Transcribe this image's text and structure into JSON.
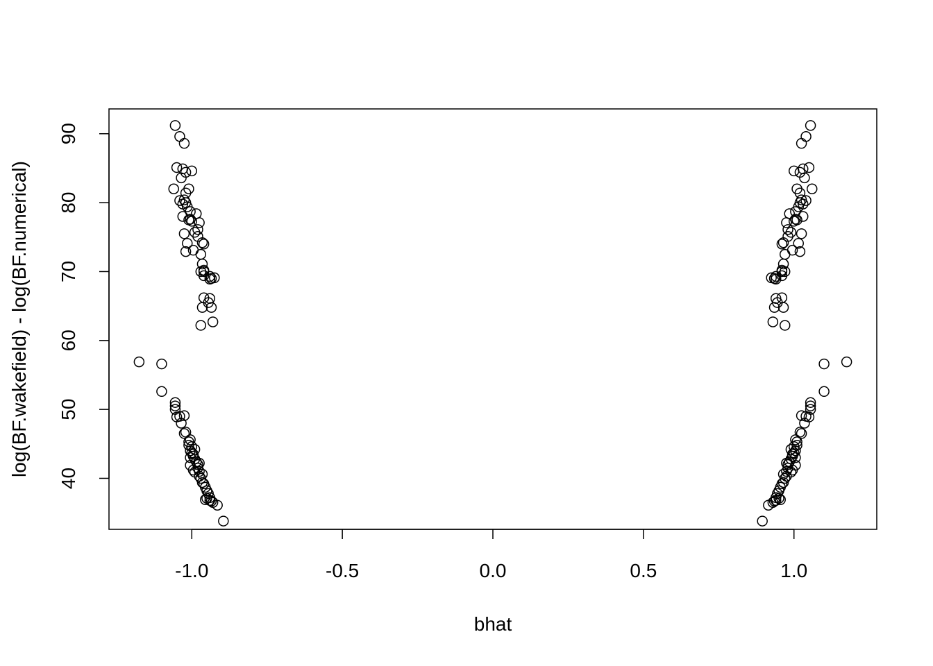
{
  "chart_data": {
    "type": "scatter",
    "title": "",
    "xlabel": "bhat",
    "ylabel": "log(BF.wakefield) - log(BF.numerical)",
    "xlim": [
      -1.275,
      1.275
    ],
    "ylim": [
      32.6,
      93.6
    ],
    "xticks": [
      -1.0,
      -0.5,
      0.0,
      0.5,
      1.0
    ],
    "xtick_labels": [
      "-1.0",
      "-0.5",
      "0.0",
      "0.5",
      "1.0"
    ],
    "yticks": [
      40,
      50,
      60,
      70,
      80,
      90
    ],
    "ytick_labels": [
      "40",
      "50",
      "60",
      "70",
      "80",
      "90"
    ],
    "grid": false,
    "marker": "open-circle",
    "marker_color": "#000000",
    "points_mirrored_about_zero": true,
    "x_right": [
      1.055,
      1.04,
      1.025,
      1.05,
      1.06,
      1.0,
      1.03,
      1.02,
      1.035,
      1.01,
      1.02,
      1.025,
      1.04,
      1.03,
      1.02,
      1.015,
      1.03,
      1.01,
      1.005,
      0.985,
      0.975,
      0.98,
      1.0,
      1.025,
      0.99,
      1.005,
      0.98,
      1.015,
      0.965,
      0.96,
      0.97,
      0.995,
      0.965,
      1.02,
      0.96,
      0.96,
      0.96,
      0.97,
      0.96,
      0.94,
      0.935,
      0.94,
      0.965,
      0.945,
      0.935,
      0.97,
      0.93,
      0.925,
      0.94,
      1.175,
      1.1,
      1.1,
      1.055,
      1.055,
      1.055,
      1.05,
      1.025,
      1.04,
      1.035,
      1.02,
      1.025,
      1.005,
      1.01,
      1.01,
      1.0,
      1.005,
      0.995,
      0.995,
      1.005,
      0.99,
      1.0,
      0.99,
      0.985,
      1.005,
      0.98,
      0.975,
      0.995,
      0.98,
      0.975,
      0.965,
      0.99,
      0.975,
      0.97,
      0.96,
      0.955,
      0.95,
      0.965,
      0.945,
      0.955,
      0.95,
      0.94,
      0.94,
      0.935,
      0.93,
      0.915,
      0.895
    ],
    "y": [
      91.2,
      89.6,
      88.6,
      85.1,
      82.0,
      84.6,
      84.9,
      84.4,
      83.6,
      82.0,
      81.4,
      80.4,
      80.3,
      79.8,
      80.0,
      79.4,
      78.0,
      77.5,
      78.7,
      78.4,
      77.1,
      76.1,
      77.3,
      75.5,
      75.7,
      77.6,
      75.1,
      74.1,
      74.2,
      74.0,
      72.5,
      73.1,
      71.1,
      72.9,
      70.2,
      70.0,
      69.4,
      70.0,
      66.2,
      69.3,
      69.0,
      68.9,
      64.8,
      65.5,
      64.8,
      62.2,
      62.7,
      69.1,
      66.1,
      56.9,
      56.6,
      52.6,
      51.0,
      50.0,
      50.5,
      48.9,
      49.1,
      49.0,
      48.0,
      46.7,
      46.5,
      45.6,
      45.3,
      44.8,
      44.6,
      44.0,
      43.5,
      43.2,
      43.0,
      42.8,
      43.7,
      44.2,
      42.4,
      41.9,
      41.5,
      42.2,
      41.2,
      42.0,
      41.0,
      40.6,
      40.9,
      40.3,
      40.0,
      39.2,
      38.7,
      38.2,
      39.4,
      37.8,
      36.9,
      37.1,
      36.8,
      37.2,
      36.7,
      36.5,
      36.1,
      33.8
    ]
  }
}
